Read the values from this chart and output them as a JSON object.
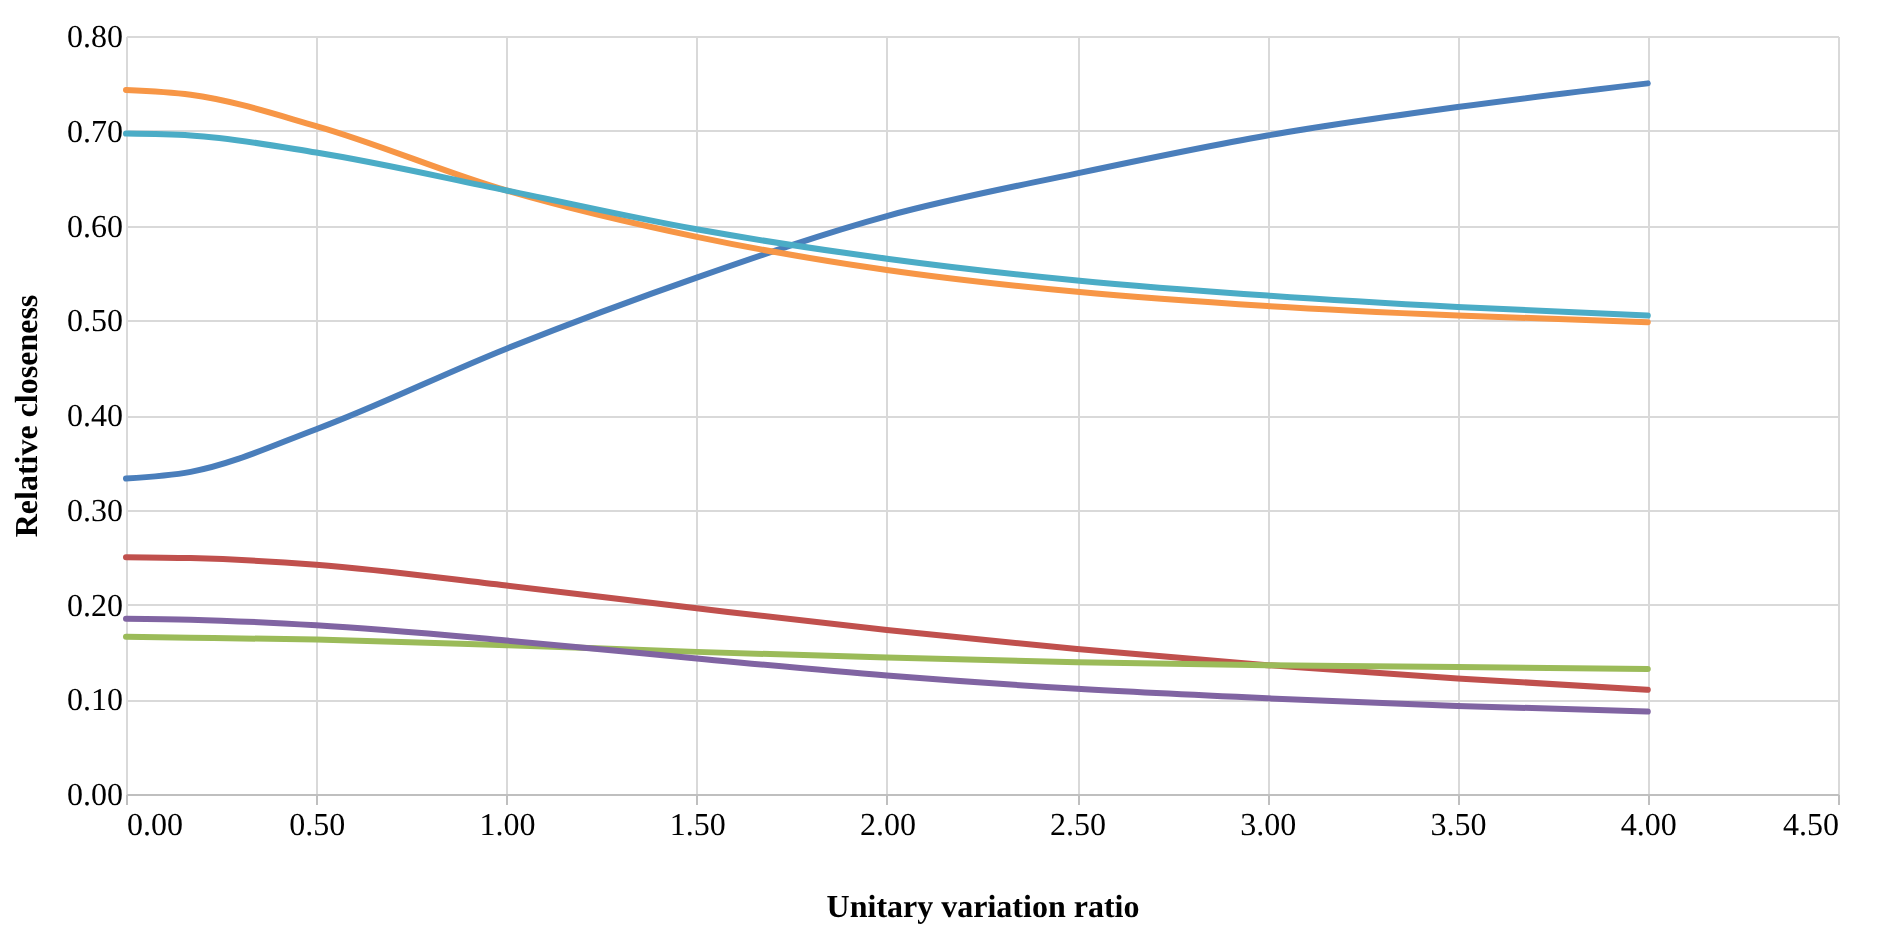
{
  "chart_data": {
    "type": "line",
    "xlabel": "Unitary variation ratio",
    "ylabel": "Relative closeness",
    "x": [
      0,
      0.17,
      0.5,
      1.0,
      1.5,
      2.0,
      2.5,
      3.0,
      3.5,
      4.0
    ],
    "series": [
      {
        "color": "#4a7ebb",
        "values": [
          0.333,
          0.34,
          0.385,
          0.47,
          0.545,
          0.61,
          0.655,
          0.695,
          0.725,
          0.75
        ]
      },
      {
        "color": "#f79646",
        "values": [
          0.743,
          0.738,
          0.705,
          0.637,
          0.588,
          0.553,
          0.53,
          0.515,
          0.505,
          0.498
        ]
      },
      {
        "color": "#4bacc6",
        "values": [
          0.697,
          0.695,
          0.677,
          0.637,
          0.596,
          0.565,
          0.542,
          0.526,
          0.514,
          0.505
        ]
      },
      {
        "color": "#c0504d",
        "values": [
          0.25,
          0.249,
          0.242,
          0.22,
          0.196,
          0.173,
          0.153,
          0.136,
          0.122,
          0.11
        ]
      },
      {
        "color": "#9bbb59",
        "values": [
          0.166,
          0.165,
          0.163,
          0.157,
          0.15,
          0.144,
          0.139,
          0.136,
          0.134,
          0.132
        ]
      },
      {
        "color": "#8064a2",
        "values": [
          0.185,
          0.184,
          0.178,
          0.162,
          0.143,
          0.125,
          0.111,
          0.101,
          0.093,
          0.087
        ]
      }
    ],
    "xlim": [
      0,
      4.5
    ],
    "xticks": [
      {
        "value": 0,
        "label": "0.00"
      },
      {
        "value": 0.5,
        "label": "0.50"
      },
      {
        "value": 1,
        "label": "1.00"
      },
      {
        "value": 1.5,
        "label": "1.50"
      },
      {
        "value": 2,
        "label": "2.00"
      },
      {
        "value": 2.5,
        "label": "2.50"
      },
      {
        "value": 3,
        "label": "3.00"
      },
      {
        "value": 3.5,
        "label": "3.50"
      },
      {
        "value": 4,
        "label": "4.00"
      },
      {
        "value": 4.5,
        "label": "4.50"
      }
    ],
    "ylim": [
      0,
      0.8
    ],
    "yticks": [
      {
        "value": 0,
        "label": "0.00"
      },
      {
        "value": 0.1,
        "label": "0.10"
      },
      {
        "value": 0.2,
        "label": "0.20"
      },
      {
        "value": 0.3,
        "label": "0.30"
      },
      {
        "value": 0.4,
        "label": "0.40"
      },
      {
        "value": 0.5,
        "label": "0.50"
      },
      {
        "value": 0.6,
        "label": "0.60"
      },
      {
        "value": 0.7,
        "label": "0.70"
      },
      {
        "value": 0.8,
        "label": "0.80"
      }
    ],
    "grid": true,
    "legend": false,
    "marker": "none",
    "line_style": "solid"
  }
}
